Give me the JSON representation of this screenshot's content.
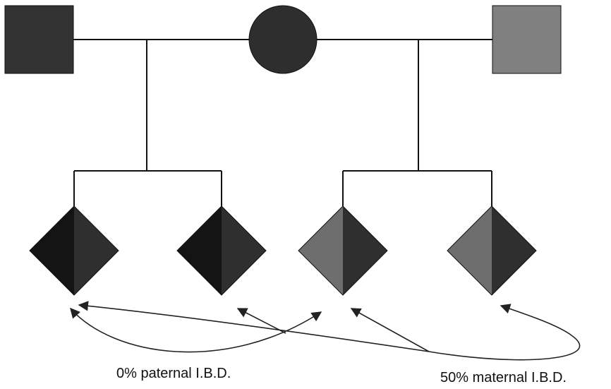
{
  "colors": {
    "father_left": "#333333",
    "mother": "#2e2e2e",
    "father_right": "#808080",
    "paternal_left_half": "#141414",
    "maternal_half": "#2f2f2f",
    "paternal_right_half": "#6e6e6e",
    "lines": "#111111",
    "arrows": "#222222"
  },
  "parents": [
    {
      "name": "father-left",
      "shape": "square",
      "color_key": "father_left"
    },
    {
      "name": "mother",
      "shape": "circle",
      "color_key": "mother"
    },
    {
      "name": "father-right",
      "shape": "square",
      "color_key": "father_right"
    }
  ],
  "children": [
    {
      "name": "child-1",
      "shape": "diamond",
      "left_color_key": "paternal_left_half",
      "right_color_key": "maternal_half"
    },
    {
      "name": "child-2",
      "shape": "diamond",
      "left_color_key": "paternal_left_half",
      "right_color_key": "maternal_half"
    },
    {
      "name": "child-3",
      "shape": "diamond",
      "left_color_key": "paternal_right_half",
      "right_color_key": "maternal_half"
    },
    {
      "name": "child-4",
      "shape": "diamond",
      "left_color_key": "paternal_right_half",
      "right_color_key": "maternal_half"
    }
  ],
  "annotations": {
    "paternal_ibd": "0% paternal I.B.D.",
    "maternal_ibd": "50% maternal I.B.D."
  }
}
